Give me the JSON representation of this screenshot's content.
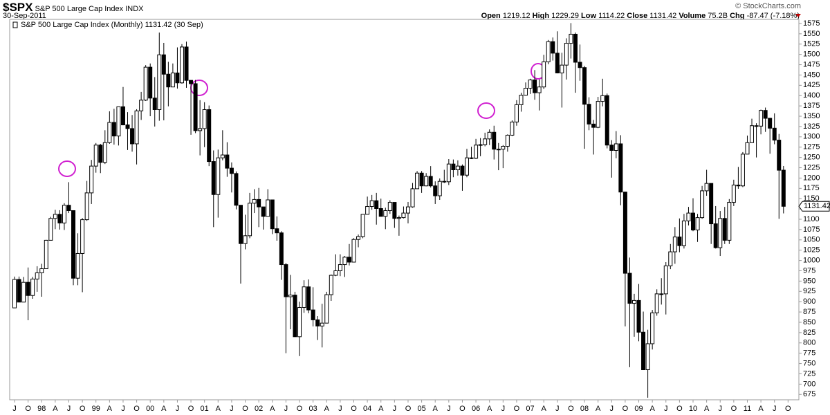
{
  "chart_data": {
    "type": "candlestick",
    "title": "$SPX",
    "subtitle": "S&P 500 Large Cap Index",
    "exchange": "INDX",
    "date": "30-Sep-2011",
    "watermark": "© StockCharts.com",
    "legend_label": "S&P 500 Large Cap Index (Monthly)",
    "legend_date": "(30 Sep)",
    "header_labels": {
      "open": "Open",
      "high": "High",
      "low": "Low",
      "close": "Close",
      "volume": "Volume",
      "change": "Chg"
    },
    "volume": "75.2B",
    "change": "-87.47 (-7.18%)",
    "up_color": "#ffffff",
    "down_color": "#000000",
    "grid": false,
    "ylim": [
      662,
      1585
    ],
    "yticks": [
      675,
      700,
      725,
      750,
      775,
      800,
      825,
      850,
      875,
      900,
      925,
      950,
      975,
      1000,
      1025,
      1050,
      1075,
      1100,
      1125,
      1150,
      1175,
      1200,
      1225,
      1250,
      1275,
      1300,
      1325,
      1350,
      1375,
      1400,
      1425,
      1450,
      1475,
      1500,
      1525,
      1550,
      1575
    ],
    "categories": [
      "J",
      null,
      null,
      "O",
      null,
      null,
      "98",
      null,
      null,
      "A",
      null,
      null,
      "J",
      null,
      null,
      "O",
      null,
      null,
      "99",
      null,
      null,
      "A",
      null,
      null,
      "J",
      null,
      null,
      "O",
      null,
      null,
      "00",
      null,
      null,
      "A",
      null,
      null,
      "J",
      null,
      null,
      "O",
      null,
      null,
      "01",
      null,
      null,
      "A",
      null,
      null,
      "J",
      null,
      null,
      "O",
      null,
      null,
      "02",
      null,
      null,
      "A",
      null,
      null,
      "J",
      null,
      null,
      "O",
      null,
      null,
      "03",
      null,
      null,
      "A",
      null,
      null,
      "J",
      null,
      null,
      "O",
      null,
      null,
      "04",
      null,
      null,
      "A",
      null,
      null,
      "J",
      null,
      null,
      "O",
      null,
      null,
      "05",
      null,
      null,
      "A",
      null,
      null,
      "J",
      null,
      null,
      "O",
      null,
      null,
      "06",
      null,
      null,
      "A",
      null,
      null,
      "J",
      null,
      null,
      "O",
      null,
      null,
      "07",
      null,
      null,
      "A",
      null,
      null,
      "J",
      null,
      null,
      "O",
      null,
      null,
      "08",
      null,
      null,
      "A",
      null,
      null,
      "J",
      null,
      null,
      "O",
      null,
      null,
      "09",
      null,
      null,
      "A",
      null,
      null,
      "J",
      null,
      null,
      "O",
      null,
      null,
      "10",
      null,
      null,
      "A",
      null,
      null,
      "J",
      null,
      null,
      "O",
      null,
      null,
      "11",
      null,
      null,
      "A",
      null,
      null,
      "J",
      null,
      null,
      "O"
    ],
    "open": [
      885,
      954,
      899,
      947,
      915,
      955,
      970,
      980,
      1049,
      1102,
      1112,
      1091,
      1134,
      1121,
      957,
      1017,
      1099,
      1164,
      1229,
      1280,
      1238,
      1286,
      1335,
      1302,
      1373,
      1329,
      1320,
      1283,
      1363,
      1389,
      1469,
      1394,
      1366,
      1499,
      1452,
      1421,
      1455,
      1431,
      1518,
      1437,
      1429,
      1315,
      1320,
      1366,
      1240,
      1160,
      1249,
      1256,
      1224,
      1211,
      1134,
      1041,
      1060,
      1139,
      1148,
      1130,
      1107,
      1147,
      1077,
      1067,
      990,
      912,
      916,
      815,
      886,
      936,
      880,
      856,
      841,
      848,
      917,
      964,
      975,
      990,
      1008,
      996,
      1051,
      1058,
      1112,
      1131,
      1145,
      1126,
      1107,
      1121,
      1141,
      1102,
      1104,
      1115,
      1130,
      1174,
      1212,
      1181,
      1204,
      1181,
      1157,
      1192,
      1191,
      1234,
      1220,
      1229,
      1207,
      1249,
      1248,
      1280,
      1281,
      1295,
      1311,
      1270,
      1270,
      1277,
      1304,
      1336,
      1378,
      1401,
      1418,
      1438,
      1407,
      1421,
      1482,
      1531,
      1503,
      1455,
      1474,
      1527,
      1549,
      1481,
      1468,
      1379,
      1331,
      1323,
      1386,
      1400,
      1280,
      1267,
      1283,
      1166,
      969,
      896,
      903,
      826,
      735,
      798,
      873,
      919,
      919,
      987,
      1021,
      1057,
      1036,
      1096,
      1115,
      1074,
      1104,
      1169,
      1187,
      1089,
      1031,
      1102,
      1049,
      1141,
      1183,
      1181,
      1258,
      1286,
      1327,
      1326,
      1364,
      1345,
      1321,
      1292,
      1219.12,
      null
    ],
    "high": [
      961,
      961,
      960,
      983,
      960,
      986,
      992,
      1050,
      1106,
      1123,
      1122,
      1139,
      1190,
      1121,
      1066,
      1103,
      1193,
      1244,
      1285,
      1283,
      1316,
      1362,
      1368,
      1373,
      1421,
      1360,
      1353,
      1367,
      1409,
      1474,
      1478,
      1445,
      1553,
      1528,
      1482,
      1478,
      1517,
      1525,
      1531,
      1437,
      1438,
      1389,
      1384,
      1376,
      1267,
      1269,
      1316,
      1287,
      1238,
      1216,
      1134,
      1111,
      1164,
      1173,
      1176,
      1130,
      1173,
      1147,
      1107,
      1071,
      994,
      965,
      924,
      900,
      952,
      954,
      935,
      865,
      895,
      924,
      966,
      1015,
      1015,
      1011,
      1040,
      1054,
      1063,
      1112,
      1155,
      1159,
      1164,
      1150,
      1128,
      1146,
      1141,
      1109,
      1131,
      1142,
      1188,
      1217,
      1217,
      1212,
      1229,
      1192,
      1199,
      1220,
      1246,
      1245,
      1243,
      1233,
      1271,
      1276,
      1295,
      1297,
      1310,
      1318,
      1327,
      1285,
      1280,
      1306,
      1340,
      1389,
      1407,
      1432,
      1441,
      1462,
      1439,
      1499,
      1535,
      1541,
      1556,
      1504,
      1539,
      1576,
      1553,
      1524,
      1472,
      1396,
      1341,
      1397,
      1441,
      1405,
      1292,
      1314,
      1304,
      1167,
      1007,
      919,
      943,
      876,
      832,
      880,
      930,
      957,
      996,
      1040,
      1081,
      1102,
      1113,
      1130,
      1151,
      1113,
      1181,
      1220,
      1187,
      1132,
      1120,
      1130,
      1149,
      1196,
      1227,
      1263,
      1303,
      1344,
      1333,
      1366,
      1371,
      1346,
      1357,
      1307,
      1229.29,
      null
    ],
    "low": [
      885,
      899,
      899,
      855,
      907,
      924,
      912,
      980,
      1049,
      1076,
      1075,
      1074,
      1115,
      940,
      940,
      923,
      1096,
      1137,
      1213,
      1212,
      1234,
      1283,
      1281,
      1279,
      1328,
      1268,
      1264,
      1233,
      1341,
      1387,
      1350,
      1325,
      1339,
      1340,
      1374,
      1421,
      1417,
      1429,
      1419,
      1305,
      1309,
      1255,
      1275,
      1229,
      1081,
      1104,
      1243,
      1203,
      1165,
      1124,
      944,
      1027,
      1054,
      1115,
      1081,
      1075,
      1107,
      1064,
      1048,
      953,
      775,
      833,
      815,
      768,
      873,
      872,
      840,
      807,
      789,
      848,
      902,
      962,
      962,
      960,
      988,
      996,
      1032,
      1054,
      1112,
      1123,
      1087,
      1107,
      1076,
      1113,
      1079,
      1060,
      1102,
      1090,
      1128,
      1174,
      1164,
      1180,
      1177,
      1137,
      1147,
      1188,
      1183,
      1202,
      1206,
      1169,
      1202,
      1246,
      1246,
      1253,
      1277,
      1280,
      1245,
      1219,
      1224,
      1264,
      1302,
      1327,
      1361,
      1400,
      1404,
      1390,
      1364,
      1416,
      1476,
      1485,
      1454,
      1371,
      1439,
      1490,
      1407,
      1436,
      1271,
      1316,
      1257,
      1321,
      1374,
      1272,
      1201,
      1248,
      1134,
      840,
      741,
      815,
      804,
      735,
      667,
      784,
      866,
      893,
      869,
      979,
      992,
      1020,
      1029,
      1085,
      1071,
      1045,
      1101,
      1157,
      1040,
      1029,
      1011,
      1040,
      1040,
      1132,
      1174,
      1178,
      1258,
      1285,
      1250,
      1306,
      1312,
      1259,
      1282,
      1101,
      1114.22,
      null
    ],
    "close": [
      954,
      899,
      947,
      915,
      955,
      970,
      980,
      1049,
      1102,
      1112,
      1091,
      1134,
      1121,
      957,
      1017,
      1099,
      1164,
      1229,
      1280,
      1238,
      1286,
      1335,
      1302,
      1373,
      1329,
      1320,
      1283,
      1363,
      1389,
      1469,
      1394,
      1366,
      1499,
      1452,
      1421,
      1455,
      1431,
      1518,
      1437,
      1429,
      1315,
      1320,
      1366,
      1240,
      1160,
      1249,
      1256,
      1224,
      1211,
      1134,
      1041,
      1060,
      1139,
      1148,
      1130,
      1107,
      1147,
      1077,
      1067,
      990,
      912,
      916,
      815,
      886,
      936,
      880,
      856,
      841,
      848,
      917,
      964,
      975,
      990,
      1008,
      996,
      1051,
      1058,
      1112,
      1131,
      1145,
      1126,
      1107,
      1121,
      1141,
      1102,
      1104,
      1115,
      1130,
      1174,
      1212,
      1181,
      1204,
      1181,
      1157,
      1192,
      1191,
      1234,
      1220,
      1229,
      1207,
      1249,
      1248,
      1280,
      1281,
      1295,
      1311,
      1270,
      1270,
      1277,
      1304,
      1336,
      1378,
      1401,
      1418,
      1438,
      1407,
      1421,
      1482,
      1531,
      1503,
      1455,
      1474,
      1527,
      1549,
      1481,
      1468,
      1379,
      1331,
      1323,
      1386,
      1400,
      1280,
      1267,
      1283,
      1166,
      969,
      896,
      903,
      826,
      735,
      798,
      873,
      919,
      919,
      987,
      1021,
      1057,
      1036,
      1096,
      1115,
      1074,
      1104,
      1169,
      1187,
      1089,
      1031,
      1102,
      1049,
      1141,
      1183,
      1181,
      1258,
      1286,
      1327,
      1326,
      1364,
      1345,
      1321,
      1292,
      1219,
      1131.42,
      null
    ]
  }
}
